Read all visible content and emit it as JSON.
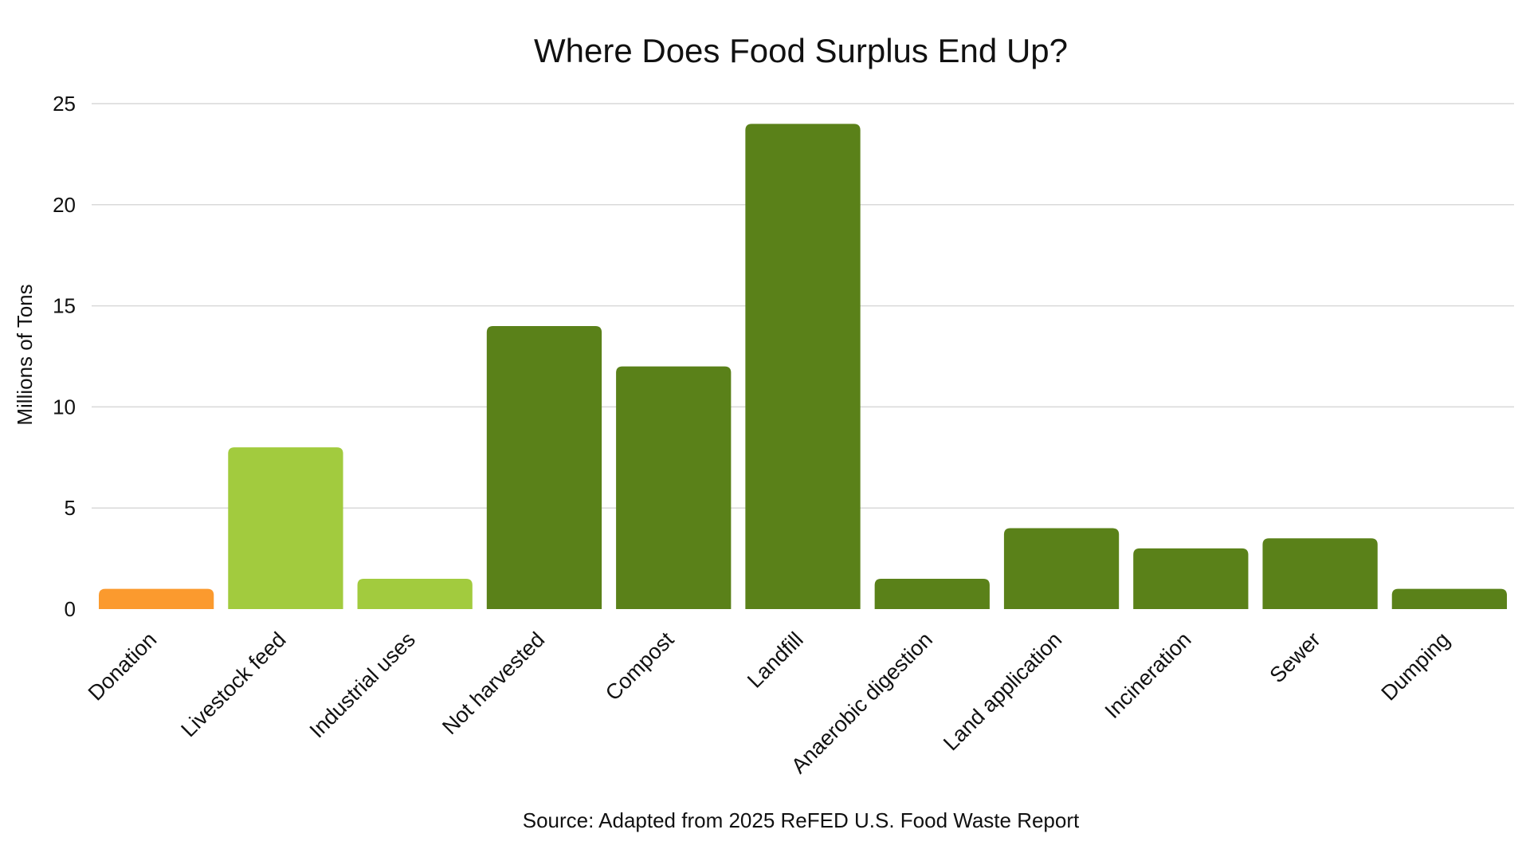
{
  "chart_data": {
    "type": "bar",
    "title": "Where Does Food Surplus End Up?",
    "xlabel": "",
    "ylabel": "Millions of Tons",
    "ylim": [
      0,
      25
    ],
    "yticks": [
      0,
      5,
      10,
      15,
      20,
      25
    ],
    "grid": true,
    "categories": [
      "Donation",
      "Livestock feed",
      "Industrial uses",
      "Not harvested",
      "Compost",
      "Landfill",
      "Anaerobic digestion",
      "Land application",
      "Incineration",
      "Sewer",
      "Dumping"
    ],
    "values": [
      1,
      8,
      1.5,
      14,
      12,
      24,
      1.5,
      4,
      3,
      3.5,
      1
    ],
    "groups": [
      "rescue",
      "upcycle",
      "upcycle",
      "waste",
      "waste",
      "waste",
      "waste",
      "waste",
      "waste",
      "waste",
      "waste"
    ],
    "group_colors": {
      "rescue": "#fb9a2e",
      "upcycle": "#a2cb3e",
      "waste": "#5a8119"
    },
    "source": "Source: Adapted from 2025 ReFED U.S. Food Waste Report"
  }
}
